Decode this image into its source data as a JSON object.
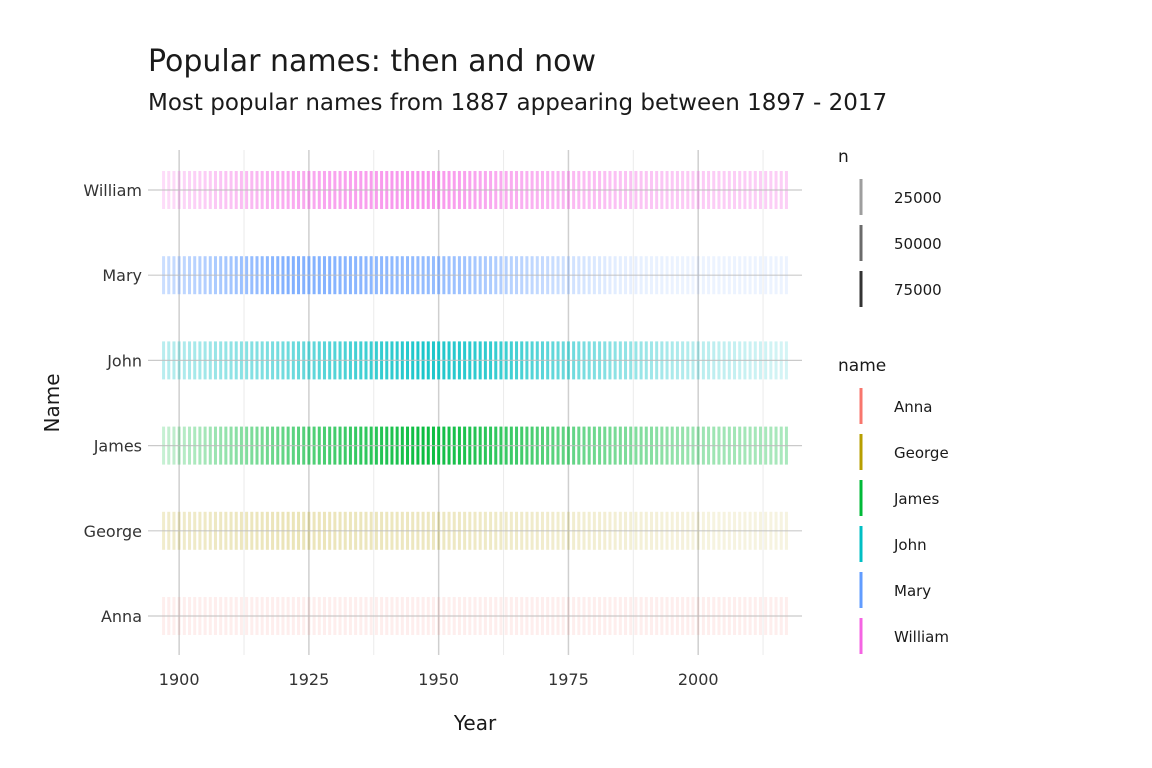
{
  "title": "Popular names: then and now",
  "subtitle": "Most popular names from 1887 appearing between 1897 - 2017",
  "chart_data": {
    "type": "heatmap",
    "xlabel": "Year",
    "ylabel": "Name",
    "xlim": [
      1894,
      2020
    ],
    "x_ticks": [
      1900,
      1925,
      1950,
      1975,
      2000
    ],
    "grid": true,
    "legend_position": "right",
    "categories": [
      "Anna",
      "George",
      "James",
      "John",
      "Mary",
      "William"
    ],
    "year_range": [
      1897,
      2017
    ],
    "series": [
      {
        "name": "Anna",
        "color": "#F8766D",
        "n_profile": [
          [
            1897,
            10000
          ],
          [
            1920,
            9000
          ],
          [
            1950,
            6000
          ],
          [
            1980,
            6500
          ],
          [
            2000,
            7000
          ],
          [
            2017,
            6000
          ]
        ]
      },
      {
        "name": "George",
        "color": "#B79F00",
        "n_profile": [
          [
            1897,
            18000
          ],
          [
            1920,
            25000
          ],
          [
            1950,
            22000
          ],
          [
            1980,
            16000
          ],
          [
            2000,
            12000
          ],
          [
            2017,
            9000
          ]
        ]
      },
      {
        "name": "James",
        "color": "#00BA38",
        "n_profile": [
          [
            1897,
            20000
          ],
          [
            1920,
            55000
          ],
          [
            1947,
            86000
          ],
          [
            1955,
            80000
          ],
          [
            1975,
            55000
          ],
          [
            2000,
            35000
          ],
          [
            2017,
            30000
          ]
        ]
      },
      {
        "name": "John",
        "color": "#00BFC4",
        "n_profile": [
          [
            1897,
            25000
          ],
          [
            1920,
            50000
          ],
          [
            1947,
            80000
          ],
          [
            1960,
            72000
          ],
          [
            1980,
            45000
          ],
          [
            2000,
            25000
          ],
          [
            2017,
            15000
          ]
        ]
      },
      {
        "name": "Mary",
        "color": "#619CFF",
        "n_profile": [
          [
            1897,
            30000
          ],
          [
            1921,
            72000
          ],
          [
            1950,
            60000
          ],
          [
            1965,
            40000
          ],
          [
            1985,
            15000
          ],
          [
            2005,
            8000
          ],
          [
            2017,
            5000
          ]
        ]
      },
      {
        "name": "William",
        "color": "#F564E3",
        "n_profile": [
          [
            1897,
            20000
          ],
          [
            1920,
            48000
          ],
          [
            1947,
            62000
          ],
          [
            1960,
            50000
          ],
          [
            1980,
            38000
          ],
          [
            2000,
            30000
          ],
          [
            2017,
            28000
          ]
        ]
      }
    ],
    "legend_n": {
      "title": "n",
      "entries": [
        "25000",
        "50000",
        "75000"
      ],
      "values": [
        25000,
        50000,
        75000
      ]
    },
    "legend_name": {
      "title": "name",
      "entries": [
        "Anna",
        "George",
        "James",
        "John",
        "Mary",
        "William"
      ]
    }
  }
}
